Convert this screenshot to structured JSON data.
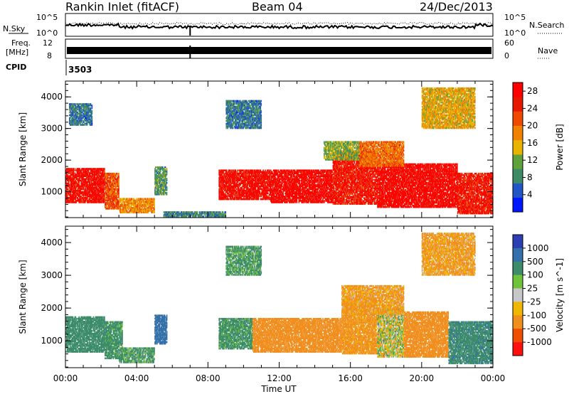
{
  "header": {
    "station": "Rankin Inlet (fitACF)",
    "beam": "Beam 04",
    "date": "24/Dec/2013"
  },
  "summary": {
    "nsky_label": "N.Sky",
    "nsky_ticks": [
      "10^5",
      "10^0"
    ],
    "nsearch_label": "N.Search",
    "nsearch_ticks": [
      "10^5",
      "10^0"
    ],
    "freq_label": "Freq.",
    "freq_unit": "[MHz]",
    "freq_ticks": [
      "12",
      "8"
    ],
    "nave_label": "Nave",
    "nave_ticks": [
      "60",
      "0"
    ],
    "cpid_label": "CPID",
    "cpid_value": "3503"
  },
  "colors": {
    "power": [
      "#0018ff",
      "#2255c6",
      "#3d8b66",
      "#5fa23d",
      "#e8b400",
      "#f08200",
      "#f04a00",
      "#e81800",
      "#ff0000"
    ],
    "velocity": [
      "#2d3fb5",
      "#3470a9",
      "#3d8c6b",
      "#6fc23b",
      "#c8c8c8",
      "#f0b700",
      "#f08e1e",
      "#f04e00",
      "#ff1010"
    ]
  },
  "chart_data": [
    {
      "type": "heatmap",
      "title": "Power",
      "ylabel": "Slant Range [km]",
      "x_ticks": [
        "00:00",
        "04:00",
        "08:00",
        "12:00",
        "16:00",
        "20:00",
        "00:00"
      ],
      "xlim_hours": [
        0,
        24
      ],
      "y_ticks": [
        1000,
        2000,
        3000,
        4000
      ],
      "ylim_km": [
        180,
        4500
      ],
      "colorbar_label": "Power [dB]",
      "colorbar_ticks": [
        4,
        8,
        12,
        16,
        20,
        24,
        28
      ],
      "colorbar_range": [
        0,
        30
      ],
      "regions": [
        {
          "t0": 0.0,
          "t1": 2.2,
          "r0": 650,
          "r1": 1750,
          "value": 27
        },
        {
          "t0": 2.2,
          "t1": 3.0,
          "r0": 450,
          "r1": 1600,
          "value": 22
        },
        {
          "t0": 3.0,
          "t1": 5.0,
          "r0": 330,
          "r1": 800,
          "value": 18
        },
        {
          "t0": 5.0,
          "t1": 5.7,
          "r0": 900,
          "r1": 1800,
          "value": 10
        },
        {
          "t0": 8.6,
          "t1": 11.5,
          "r0": 750,
          "r1": 1700,
          "value": 27
        },
        {
          "t0": 11.5,
          "t1": 15.0,
          "r0": 650,
          "r1": 1700,
          "value": 28
        },
        {
          "t0": 15.0,
          "t1": 17.5,
          "r0": 600,
          "r1": 2300,
          "value": 26
        },
        {
          "t0": 17.5,
          "t1": 22.0,
          "r0": 500,
          "r1": 1900,
          "value": 28
        },
        {
          "t0": 22.0,
          "t1": 24.0,
          "r0": 300,
          "r1": 1600,
          "value": 26
        },
        {
          "t0": 14.5,
          "t1": 16.5,
          "r0": 2000,
          "r1": 2600,
          "value": 12
        },
        {
          "t0": 16.5,
          "t1": 19.0,
          "r0": 1800,
          "r1": 2600,
          "value": 20
        },
        {
          "t0": 9.0,
          "t1": 11.0,
          "r0": 3000,
          "r1": 3900,
          "value": 7
        },
        {
          "t0": 20.0,
          "t1": 23.0,
          "r0": 3000,
          "r1": 4300,
          "value": 16
        },
        {
          "t0": 0.2,
          "t1": 1.5,
          "r0": 3100,
          "r1": 3800,
          "value": 7
        },
        {
          "t0": 5.5,
          "t1": 9.0,
          "r0": 200,
          "r1": 380,
          "value": 8
        }
      ]
    },
    {
      "type": "heatmap",
      "title": "Velocity",
      "ylabel": "Slant Range [km]",
      "xlabel": "Time UT",
      "x_ticks": [
        "00:00",
        "04:00",
        "08:00",
        "12:00",
        "16:00",
        "20:00",
        "00:00"
      ],
      "xlim_hours": [
        0,
        24
      ],
      "y_ticks": [
        1000,
        2000,
        3000,
        4000
      ],
      "ylim_km": [
        180,
        4500
      ],
      "colorbar_label": "Velocity [m s^-1]",
      "colorbar_ticks": [
        1000,
        500,
        100,
        25,
        -25,
        -100,
        -500,
        -1000
      ],
      "regions": [
        {
          "t0": 0.0,
          "t1": 2.2,
          "r0": 650,
          "r1": 1750,
          "value": 300
        },
        {
          "t0": 2.2,
          "t1": 3.2,
          "r0": 450,
          "r1": 1600,
          "value": 200
        },
        {
          "t0": 3.0,
          "t1": 5.0,
          "r0": 330,
          "r1": 800,
          "value": 150
        },
        {
          "t0": 5.0,
          "t1": 5.7,
          "r0": 900,
          "r1": 1800,
          "value": 800
        },
        {
          "t0": 8.6,
          "t1": 10.5,
          "r0": 750,
          "r1": 1700,
          "value": 200
        },
        {
          "t0": 10.5,
          "t1": 15.5,
          "r0": 650,
          "r1": 1700,
          "value": -300
        },
        {
          "t0": 15.5,
          "t1": 17.5,
          "r0": 600,
          "r1": 2300,
          "value": -200
        },
        {
          "t0": 17.5,
          "t1": 19.0,
          "r0": 500,
          "r1": 2000,
          "value": 0
        },
        {
          "t0": 19.0,
          "t1": 21.5,
          "r0": 500,
          "r1": 1900,
          "value": -300
        },
        {
          "t0": 21.5,
          "t1": 24.0,
          "r0": 300,
          "r1": 1600,
          "value": 400
        },
        {
          "t0": 15.5,
          "t1": 19.0,
          "r0": 1800,
          "r1": 2700,
          "value": -150
        },
        {
          "t0": 20.0,
          "t1": 23.0,
          "r0": 3000,
          "r1": 4300,
          "value": -150
        },
        {
          "t0": 9.0,
          "t1": 11.0,
          "r0": 3000,
          "r1": 3900,
          "value": 150
        }
      ]
    }
  ]
}
